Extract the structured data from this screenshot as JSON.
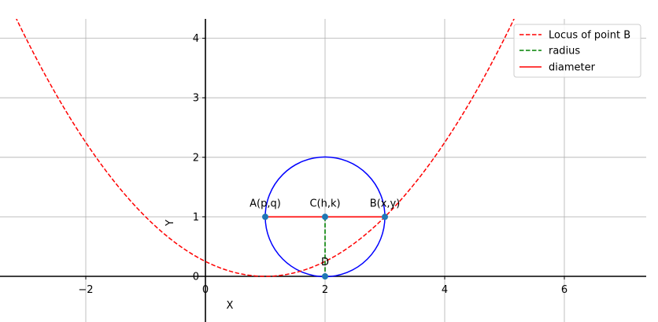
{
  "chart_data": {
    "type": "line",
    "xlabel": "X",
    "ylabel": "Y",
    "xlim": [
      -3.4,
      7.3
    ],
    "ylim": [
      -0.75,
      4.3
    ],
    "grid": true,
    "legend_position": "top-right",
    "x_ticks": [
      -2,
      0,
      2,
      4,
      6
    ],
    "x_tick_labels": [
      "−2",
      "0",
      "2",
      "4",
      "6"
    ],
    "y_ticks": [
      0,
      1,
      2,
      3,
      4
    ],
    "y_tick_labels": [
      "0",
      "1",
      "2",
      "3",
      "4"
    ],
    "series": [
      {
        "name": "Locus of point B",
        "kind": "curve",
        "equation": "y = (x - 1)^2 / 4",
        "x_range": [
          -3.4,
          7.3
        ],
        "color": "#ff0000",
        "style": "dashed"
      },
      {
        "name": "radius",
        "kind": "segment",
        "x": [
          2,
          2
        ],
        "y": [
          1,
          0
        ],
        "color": "#008000",
        "style": "dashed"
      },
      {
        "name": "diameter",
        "kind": "segment",
        "x": [
          1,
          3
        ],
        "y": [
          1,
          1
        ],
        "color": "#ff0000",
        "style": "solid"
      }
    ],
    "circle": {
      "center": [
        2,
        1
      ],
      "radius": 1,
      "color": "#0000ff"
    },
    "points": [
      {
        "label": "A(p,q)",
        "x": 1,
        "y": 1
      },
      {
        "label": "C(h,k)",
        "x": 2,
        "y": 1
      },
      {
        "label": "B(x,y)",
        "x": 3,
        "y": 1
      },
      {
        "label": "D",
        "x": 2,
        "y": 0
      }
    ],
    "point_color": "#1f77b4",
    "grid_color": "#b0b0b0"
  }
}
